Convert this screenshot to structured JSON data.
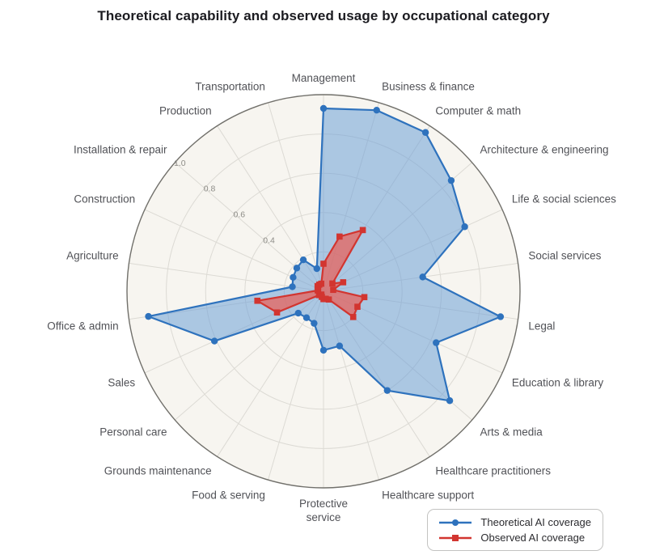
{
  "page": {
    "title": "Theoretical capability and observed usage by occupational category"
  },
  "chart_data": {
    "type": "radar",
    "categories": [
      "Management",
      "Business & finance",
      "Computer & math",
      "Architecture & engineering",
      "Life & social sciences",
      "Social services",
      "Legal",
      "Education & library",
      "Arts & media",
      "Healthcare practitioners",
      "Healthcare support",
      "Protective service",
      "Food & serving",
      "Grounds maintenance",
      "Personal care",
      "Sales",
      "Office & admin",
      "Agriculture",
      "Construction",
      "Installation & repair",
      "Production",
      "Transportation"
    ],
    "series": [
      {
        "name": "Theoretical AI coverage",
        "marker": "circle",
        "color": "#2e72bd",
        "fill": "rgba(110,160,215,0.55)",
        "values": [
          0.93,
          0.96,
          0.96,
          0.86,
          0.79,
          0.51,
          0.91,
          0.63,
          0.85,
          0.6,
          0.29,
          0.3,
          0.17,
          0.16,
          0.17,
          0.61,
          0.9,
          0.16,
          0.17,
          0.18,
          0.19,
          0.12
        ]
      },
      {
        "name": "Observed AI coverage",
        "marker": "square",
        "color": "#d23530",
        "fill": "rgba(233,95,88,0.72)",
        "values": [
          0.14,
          0.29,
          0.37,
          0.06,
          0.11,
          0.05,
          0.21,
          0.19,
          0.2,
          0.05,
          0.04,
          0.04,
          0.03,
          0.02,
          0.03,
          0.26,
          0.34,
          0.03,
          0.03,
          0.04,
          0.04,
          0.04
        ]
      }
    ],
    "radial_ticks": [
      "0.4",
      "0.6",
      "0.8",
      "1.0"
    ],
    "grid_levels": [
      0.2,
      0.4,
      0.6,
      0.8,
      1.0
    ],
    "rmax": 1.0,
    "grid": true,
    "legend_position": "bottom-right",
    "colors": {
      "plot_background": "#f7f5f0",
      "grid_line": "#dcdad4",
      "outer_ring": "#71706b",
      "label_text": "#515257",
      "tick_text": "#8d8c87"
    }
  }
}
